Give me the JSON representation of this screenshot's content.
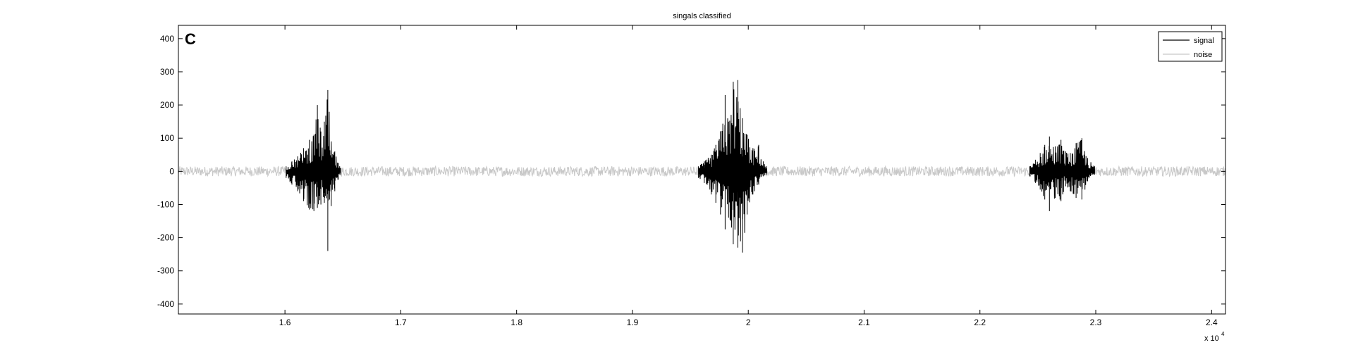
{
  "chart_data": {
    "type": "line",
    "title": "singals classified",
    "panel_label": "C",
    "xlabel": "",
    "ylabel": "",
    "x_multiplier_label": {
      "base": "x 10",
      "exponent": "4"
    },
    "xlim": [
      15080,
      24120
    ],
    "ylim": [
      -430,
      440
    ],
    "xticks": [
      16000,
      17000,
      18000,
      19000,
      20000,
      21000,
      22000,
      23000,
      24000
    ],
    "xtick_labels": [
      "1.6",
      "1.7",
      "1.8",
      "1.9",
      "2",
      "2.1",
      "2.2",
      "2.3",
      "2.4"
    ],
    "yticks": [
      -400,
      -300,
      -200,
      -100,
      0,
      100,
      200,
      300,
      400
    ],
    "ytick_labels": [
      "-400",
      "-300",
      "-200",
      "-100",
      "0",
      "100",
      "200",
      "300",
      "400"
    ],
    "grid": false,
    "legend_position": "top-right",
    "series": [
      {
        "name": "signal",
        "color": "#000000",
        "segments": [
          {
            "x_start": 16010,
            "x_end": 16480,
            "envelope": [
              [
                16010,
                15
              ],
              [
                16060,
                30
              ],
              [
                16110,
                45
              ],
              [
                16160,
                70
              ],
              [
                16210,
                95
              ],
              [
                16250,
                110
              ],
              [
                16280,
                200
              ],
              [
                16310,
                120
              ],
              [
                16340,
                150
              ],
              [
                16370,
                245
              ],
              [
                16400,
                90
              ],
              [
                16430,
                60
              ],
              [
                16460,
                25
              ],
              [
                16480,
                10
              ]
            ],
            "min_envelope": [
              [
                16010,
                -20
              ],
              [
                16060,
                -40
              ],
              [
                16110,
                -60
              ],
              [
                16160,
                -90
              ],
              [
                16210,
                -115
              ],
              [
                16250,
                -120
              ],
              [
                16280,
                -110
              ],
              [
                16310,
                -100
              ],
              [
                16340,
                -95
              ],
              [
                16370,
                -240
              ],
              [
                16400,
                -105
              ],
              [
                16430,
                -60
              ],
              [
                16460,
                -25
              ],
              [
                16480,
                -10
              ]
            ]
          },
          {
            "x_start": 19570,
            "x_end": 20160,
            "envelope": [
              [
                19570,
                15
              ],
              [
                19620,
                30
              ],
              [
                19680,
                50
              ],
              [
                19720,
                80
              ],
              [
                19760,
                120
              ],
              [
                19800,
                230
              ],
              [
                19830,
                150
              ],
              [
                19870,
                270
              ],
              [
                19910,
                275
              ],
              [
                19950,
                160
              ],
              [
                19990,
                110
              ],
              [
                20040,
                70
              ],
              [
                20090,
                80
              ],
              [
                20130,
                30
              ],
              [
                20160,
                15
              ]
            ],
            "min_envelope": [
              [
                19570,
                -20
              ],
              [
                19620,
                -35
              ],
              [
                19680,
                -70
              ],
              [
                19720,
                -95
              ],
              [
                19760,
                -130
              ],
              [
                19800,
                -175
              ],
              [
                19830,
                -140
              ],
              [
                19870,
                -220
              ],
              [
                19910,
                -230
              ],
              [
                19950,
                -245
              ],
              [
                19990,
                -130
              ],
              [
                20040,
                -70
              ],
              [
                20090,
                -40
              ],
              [
                20130,
                -15
              ],
              [
                20160,
                -10
              ]
            ]
          },
          {
            "x_start": 22430,
            "x_end": 22990,
            "envelope": [
              [
                22430,
                15
              ],
              [
                22480,
                35
              ],
              [
                22520,
                55
              ],
              [
                22560,
                80
              ],
              [
                22600,
                105
              ],
              [
                22650,
                75
              ],
              [
                22700,
                95
              ],
              [
                22740,
                60
              ],
              [
                22780,
                55
              ],
              [
                22830,
                85
              ],
              [
                22880,
                100
              ],
              [
                22930,
                40
              ],
              [
                22990,
                15
              ]
            ],
            "min_envelope": [
              [
                22430,
                -15
              ],
              [
                22480,
                -35
              ],
              [
                22520,
                -55
              ],
              [
                22560,
                -85
              ],
              [
                22600,
                -120
              ],
              [
                22650,
                -80
              ],
              [
                22700,
                -90
              ],
              [
                22740,
                -45
              ],
              [
                22780,
                -60
              ],
              [
                22830,
                -80
              ],
              [
                22880,
                -85
              ],
              [
                22930,
                -30
              ],
              [
                22990,
                -10
              ]
            ]
          }
        ]
      },
      {
        "name": "noise",
        "color": "#c8c8c8",
        "x_range": [
          15080,
          24120
        ],
        "amplitude_range": [
          -15,
          15
        ]
      }
    ]
  }
}
